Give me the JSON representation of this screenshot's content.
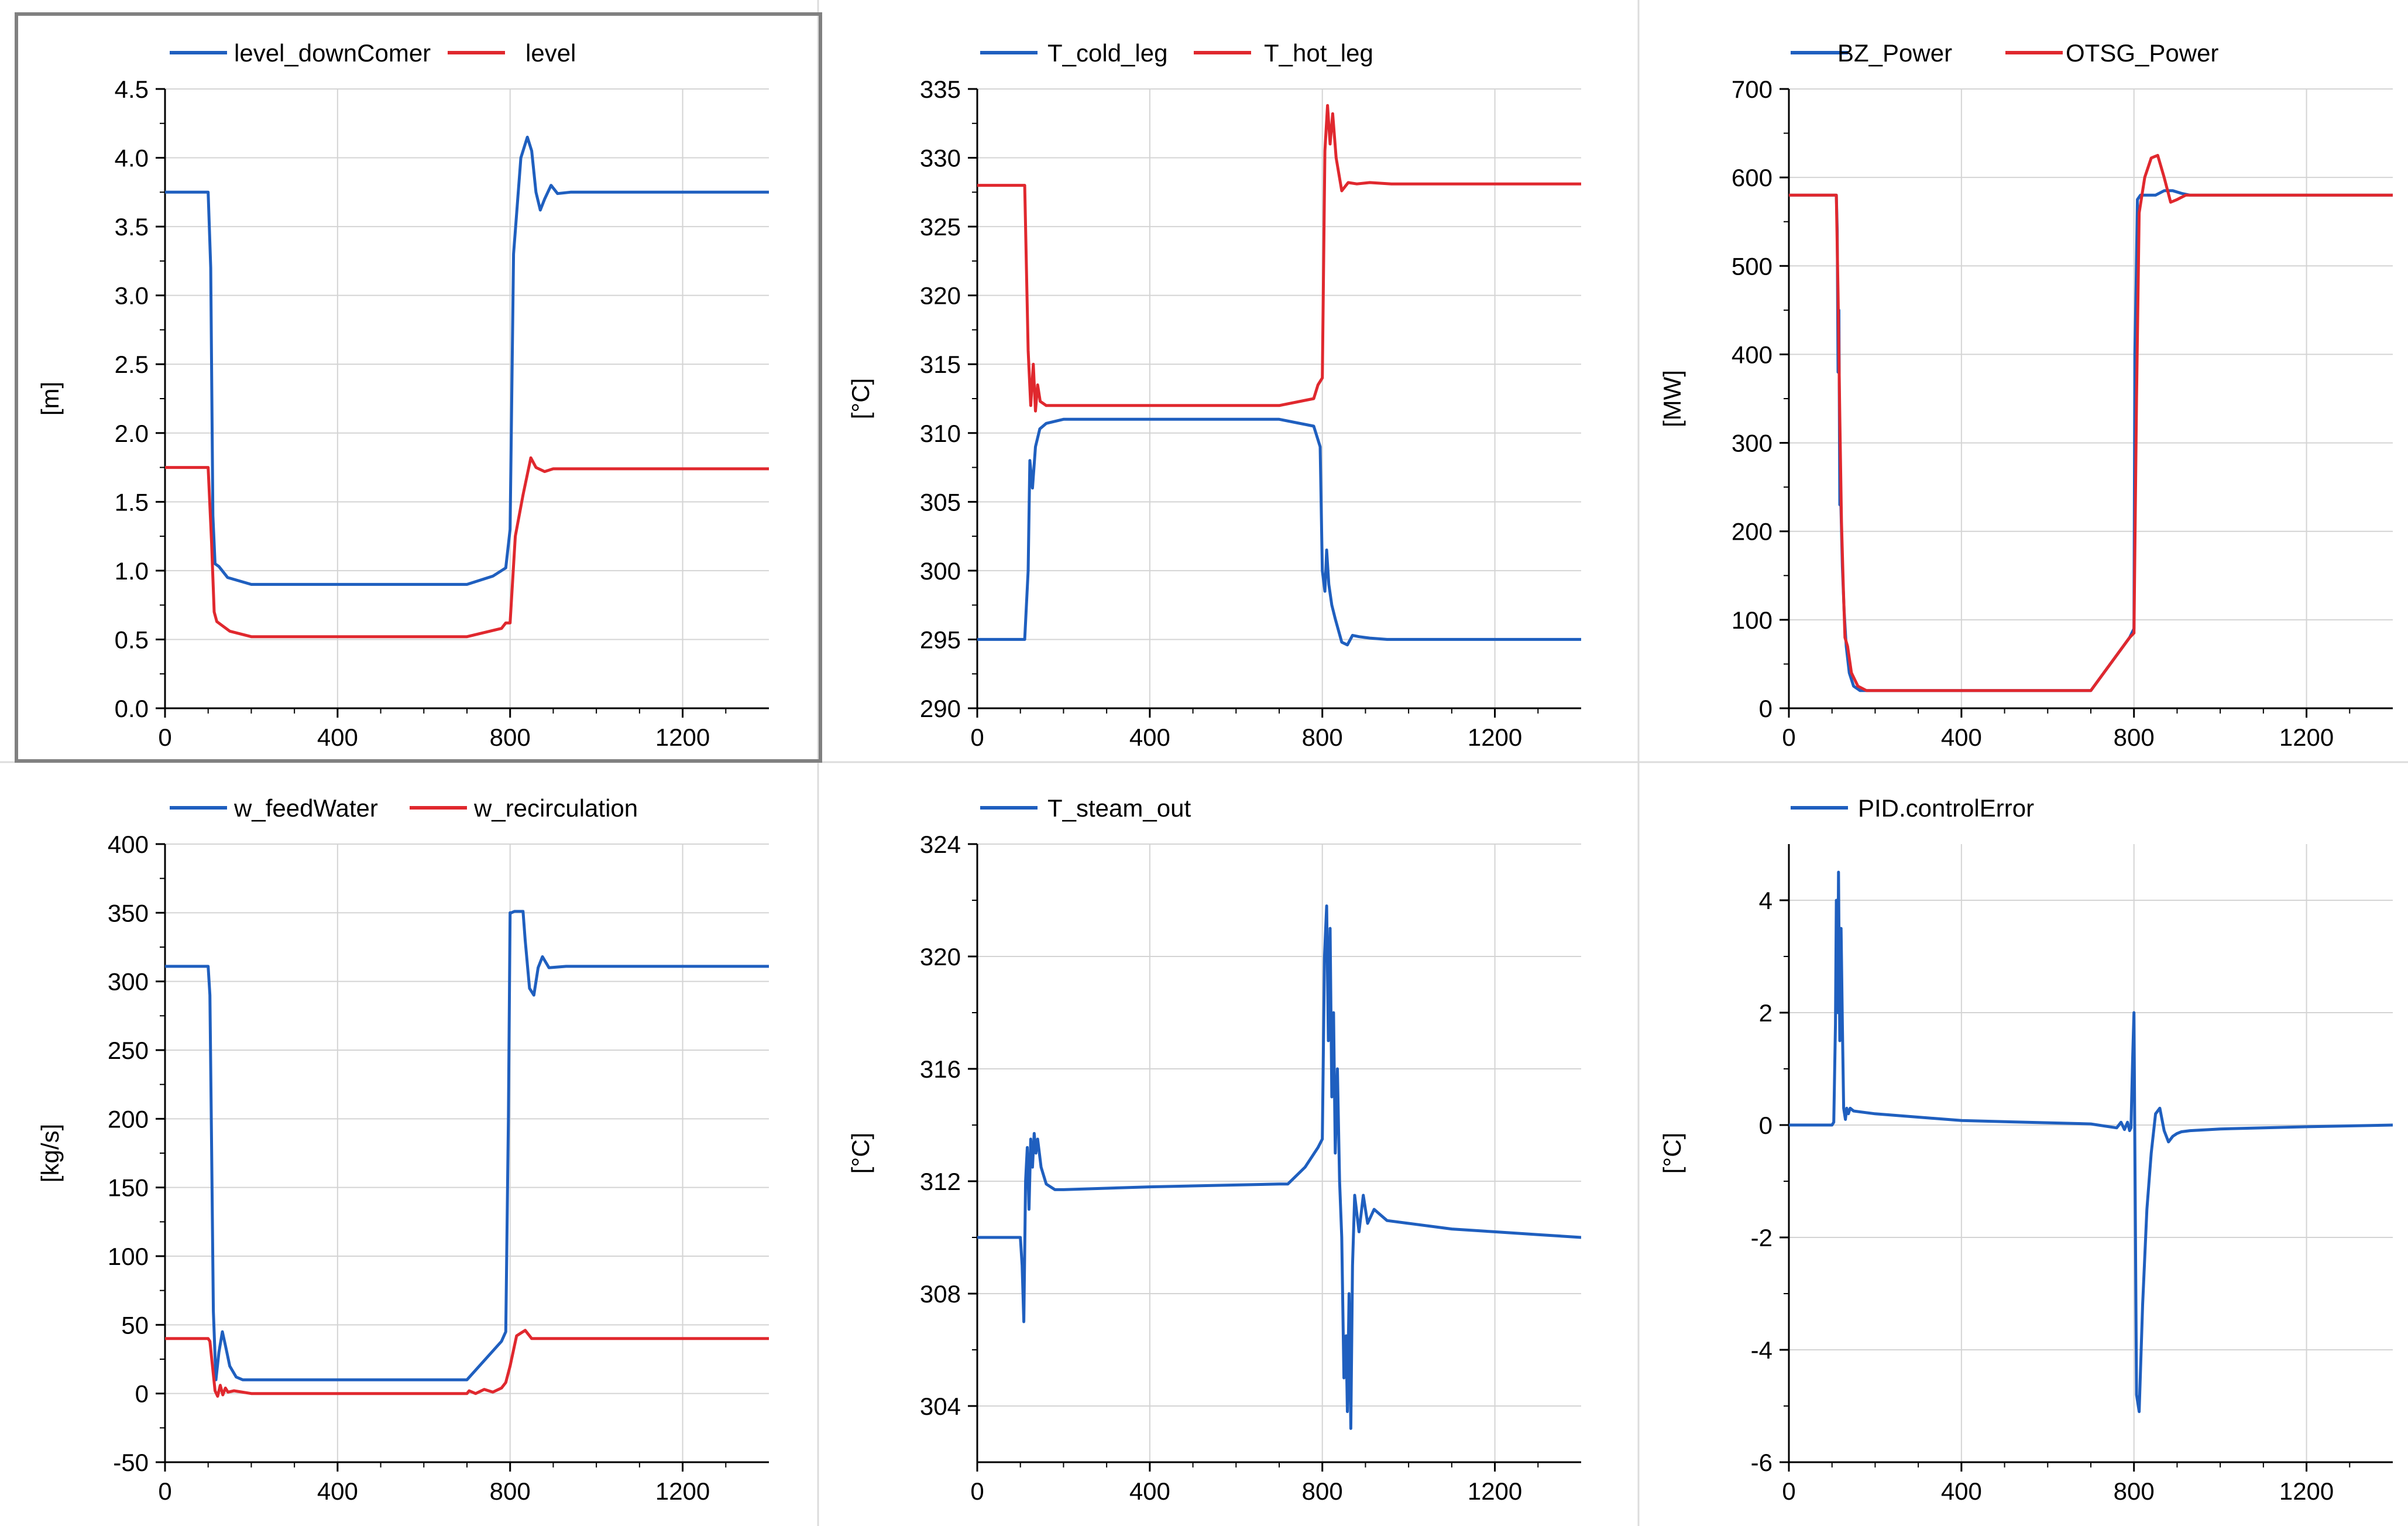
{
  "colors": {
    "blue": "#1f5fbf",
    "red": "#e0282e",
    "axis": "#000000",
    "grid": "#d4d4d4",
    "selection": "#808080",
    "separator": "#dcdcdc"
  },
  "chart_data": [
    {
      "type": "line",
      "ylabel": "[m]",
      "xlim": [
        0,
        1400
      ],
      "ylim": [
        0,
        4.5
      ],
      "xticks": [
        0,
        400,
        800,
        1200
      ],
      "xtick_labels": [
        "0",
        "400",
        "800",
        "1200"
      ],
      "yticks": [
        0,
        0.5,
        1,
        1.5,
        2,
        2.5,
        3,
        3.5,
        4,
        4.5
      ],
      "ytick_labels": [
        "0.0",
        "0.5",
        "1.0",
        "1.5",
        "2.0",
        "2.5",
        "3.0",
        "3.5",
        "4.0",
        "4.5"
      ],
      "grid": true,
      "legend": "top",
      "selected": true,
      "series": [
        {
          "name": "level_downComer",
          "color": "#1f5fbf",
          "x": [
            0,
            100,
            106,
            111,
            116,
            125,
            145,
            200,
            700,
            760,
            790,
            800,
            808,
            825,
            840,
            850,
            860,
            870,
            880,
            895,
            910,
            940,
            1000,
            1400
          ],
          "y": [
            3.75,
            3.75,
            3.2,
            1.4,
            1.05,
            1.03,
            0.95,
            0.9,
            0.9,
            0.96,
            1.02,
            1.3,
            3.3,
            4.0,
            4.15,
            4.05,
            3.75,
            3.62,
            3.7,
            3.8,
            3.74,
            3.75,
            3.75,
            3.75
          ]
        },
        {
          "name": "level",
          "color": "#e0282e",
          "x": [
            0,
            100,
            108,
            114,
            120,
            150,
            200,
            700,
            780,
            790,
            800,
            812,
            830,
            848,
            860,
            880,
            900,
            1000,
            1400
          ],
          "y": [
            1.75,
            1.75,
            1.2,
            0.7,
            0.63,
            0.56,
            0.52,
            0.52,
            0.58,
            0.62,
            0.62,
            1.25,
            1.55,
            1.82,
            1.75,
            1.72,
            1.74,
            1.74,
            1.74
          ]
        }
      ]
    },
    {
      "type": "line",
      "ylabel": "[°C]",
      "xlim": [
        0,
        1400
      ],
      "ylim": [
        290,
        335
      ],
      "xticks": [
        0,
        400,
        800,
        1200
      ],
      "xtick_labels": [
        "0",
        "400",
        "800",
        "1200"
      ],
      "yticks": [
        290,
        295,
        300,
        305,
        310,
        315,
        320,
        325,
        330,
        335
      ],
      "ytick_labels": [
        "290",
        "295",
        "300",
        "305",
        "310",
        "315",
        "320",
        "325",
        "330",
        "335"
      ],
      "grid": true,
      "legend": "top",
      "series": [
        {
          "name": "T_cold_leg",
          "color": "#1f5fbf",
          "x": [
            0,
            110,
            118,
            122,
            128,
            135,
            145,
            160,
            200,
            700,
            780,
            795,
            800,
            806,
            810,
            815,
            822,
            830,
            845,
            858,
            870,
            885,
            910,
            950,
            1000,
            1400
          ],
          "y": [
            295,
            295,
            300,
            308,
            306,
            309,
            310.3,
            310.7,
            311,
            311,
            310.5,
            309,
            300,
            298.5,
            301.5,
            299,
            297.5,
            296.5,
            294.8,
            294.6,
            295.3,
            295.2,
            295.1,
            295,
            295,
            295
          ]
        },
        {
          "name": "T_hot_leg",
          "color": "#e0282e",
          "x": [
            0,
            110,
            118,
            124,
            130,
            135,
            140,
            146,
            160,
            200,
            700,
            780,
            790,
            800,
            806,
            812,
            818,
            824,
            832,
            845,
            860,
            880,
            910,
            960,
            1400
          ],
          "y": [
            328,
            328,
            316,
            312,
            315,
            311.6,
            313.5,
            312.3,
            312,
            312,
            312,
            312.5,
            313.5,
            314,
            330.5,
            333.8,
            331,
            333.2,
            330,
            327.6,
            328.2,
            328.1,
            328.2,
            328.1,
            328.1
          ]
        }
      ]
    },
    {
      "type": "line",
      "ylabel": "[MW]",
      "xlim": [
        0,
        1400
      ],
      "ylim": [
        0,
        700
      ],
      "xticks": [
        0,
        400,
        800,
        1200
      ],
      "xtick_labels": [
        "0",
        "400",
        "800",
        "1200"
      ],
      "yticks": [
        0,
        100,
        200,
        300,
        400,
        500,
        600,
        700
      ],
      "ytick_labels": [
        "0",
        "100",
        "200",
        "300",
        "400",
        "500",
        "600",
        "700"
      ],
      "grid": true,
      "legend": "top",
      "series": [
        {
          "name": "BZ_Power",
          "color": "#1f5fbf",
          "x": [
            0,
            110,
            112,
            114,
            116,
            118,
            120,
            124,
            128,
            133,
            140,
            150,
            165,
            185,
            200,
            700,
            790,
            800,
            802,
            805,
            808,
            815,
            830,
            850,
            870,
            890,
            910,
            930,
            1400
          ],
          "y": [
            580,
            580,
            540,
            380,
            450,
            230,
            240,
            160,
            110,
            70,
            40,
            25,
            20,
            20,
            20,
            20,
            80,
            90,
            400,
            480,
            575,
            580,
            580,
            580,
            585,
            585,
            582,
            580,
            580
          ]
        },
        {
          "name": "OTSG_Power",
          "color": "#e0282e",
          "x": [
            0,
            110,
            114,
            118,
            122,
            126,
            130,
            136,
            145,
            160,
            180,
            200,
            700,
            790,
            800,
            806,
            812,
            825,
            840,
            855,
            870,
            885,
            900,
            920,
            1400
          ],
          "y": [
            580,
            580,
            470,
            330,
            210,
            140,
            80,
            70,
            40,
            25,
            20,
            20,
            20,
            80,
            85,
            350,
            560,
            600,
            622,
            625,
            600,
            572,
            575,
            580,
            580
          ]
        }
      ]
    },
    {
      "type": "line",
      "ylabel": "[kg/s]",
      "xlim": [
        0,
        1400
      ],
      "ylim": [
        -50,
        400
      ],
      "xticks": [
        0,
        400,
        800,
        1200
      ],
      "xtick_labels": [
        "0",
        "400",
        "800",
        "1200"
      ],
      "yticks": [
        -50,
        0,
        50,
        100,
        150,
        200,
        250,
        300,
        350,
        400
      ],
      "ytick_labels": [
        "-50",
        "0",
        "50",
        "100",
        "150",
        "200",
        "250",
        "300",
        "350",
        "400"
      ],
      "grid": true,
      "legend": "top",
      "series": [
        {
          "name": "w_feedWater",
          "color": "#1f5fbf",
          "x": [
            0,
            100,
            104,
            108,
            112,
            118,
            125,
            133,
            140,
            150,
            165,
            180,
            200,
            700,
            780,
            790,
            796,
            800,
            803,
            810,
            830,
            835,
            845,
            855,
            865,
            875,
            890,
            930,
            1000,
            1400
          ],
          "y": [
            311,
            311,
            290,
            180,
            60,
            10,
            30,
            45,
            35,
            20,
            12,
            10,
            10,
            10,
            38,
            45,
            200,
            350,
            350,
            351,
            351,
            330,
            295,
            290,
            310,
            318,
            310,
            311,
            311,
            311
          ]
        },
        {
          "name": "w_recirculation",
          "color": "#e0282e",
          "x": [
            0,
            100,
            104,
            110,
            116,
            122,
            128,
            134,
            140,
            146,
            160,
            200,
            700,
            705,
            720,
            740,
            760,
            780,
            790,
            800,
            815,
            835,
            850,
            870,
            900,
            1400
          ],
          "y": [
            40,
            40,
            38,
            20,
            2,
            -2,
            6,
            -1,
            4,
            1,
            2,
            0,
            0,
            2,
            0,
            3,
            1,
            4,
            8,
            20,
            42,
            46,
            40,
            40,
            40,
            40
          ]
        }
      ]
    },
    {
      "type": "line",
      "ylabel": "[°C]",
      "xlim": [
        0,
        1400
      ],
      "ylim": [
        302,
        324
      ],
      "xticks": [
        0,
        400,
        800,
        1200
      ],
      "xtick_labels": [
        "0",
        "400",
        "800",
        "1200"
      ],
      "yticks": [
        304,
        308,
        312,
        316,
        320,
        324
      ],
      "ytick_labels": [
        "304",
        "308",
        "312",
        "316",
        "320",
        "324"
      ],
      "grid": true,
      "legend": "top",
      "series": [
        {
          "name": "T_steam_out",
          "color": "#1f5fbf",
          "x": [
            0,
            100,
            104,
            108,
            112,
            116,
            120,
            124,
            128,
            132,
            136,
            140,
            148,
            160,
            180,
            200,
            400,
            700,
            720,
            760,
            790,
            800,
            805,
            810,
            814,
            818,
            822,
            826,
            830,
            835,
            840,
            845,
            850,
            855,
            858,
            862,
            866,
            870,
            875,
            885,
            895,
            905,
            920,
            935,
            950,
            1000,
            1100,
            1200,
            1300,
            1400
          ],
          "y": [
            310,
            310,
            309,
            307,
            312,
            313.2,
            311,
            313.5,
            312.5,
            313.7,
            313,
            313.5,
            312.5,
            311.9,
            311.7,
            311.7,
            311.8,
            311.9,
            311.9,
            312.5,
            313.2,
            313.5,
            320,
            321.8,
            317,
            321,
            315,
            318,
            313,
            316,
            312,
            310,
            305,
            306.5,
            303.8,
            308,
            303.2,
            309,
            311.5,
            310.2,
            311.5,
            310.5,
            311,
            310.8,
            310.6,
            310.5,
            310.3,
            310.2,
            310.1,
            310
          ]
        }
      ]
    },
    {
      "type": "line",
      "ylabel": "[°C]",
      "xlim": [
        0,
        1400
      ],
      "ylim": [
        -6,
        5
      ],
      "xticks": [
        0,
        400,
        800,
        1200
      ],
      "xtick_labels": [
        "0",
        "400",
        "800",
        "1200"
      ],
      "yticks": [
        -6,
        -4,
        -2,
        0,
        2,
        4
      ],
      "ytick_labels": [
        "-6",
        "-4",
        "-2",
        "0",
        "2",
        "4"
      ],
      "grid": true,
      "legend": "top",
      "series": [
        {
          "name": "PID.controlError",
          "color": "#1f5fbf",
          "x": [
            0,
            100,
            104,
            108,
            110,
            113,
            115,
            118,
            121,
            124,
            127,
            131,
            134,
            138,
            142,
            150,
            200,
            400,
            700,
            760,
            770,
            778,
            785,
            790,
            793,
            797,
            800,
            806,
            812,
            820,
            830,
            840,
            850,
            860,
            870,
            880,
            890,
            900,
            910,
            930,
            1000,
            1200,
            1400
          ],
          "y": [
            0,
            0,
            0.05,
            1.8,
            4.0,
            2.0,
            4.5,
            1.5,
            3.5,
            1.8,
            0.3,
            0.1,
            0.3,
            0.2,
            0.3,
            0.25,
            0.2,
            0.08,
            0.02,
            -0.05,
            0.05,
            -0.08,
            0.05,
            -0.1,
            -0.05,
            1.2,
            2.0,
            -4.8,
            -5.1,
            -3.2,
            -1.5,
            -0.5,
            0.2,
            0.3,
            -0.1,
            -0.3,
            -0.2,
            -0.15,
            -0.12,
            -0.1,
            -0.07,
            -0.03,
            0
          ]
        }
      ]
    }
  ]
}
